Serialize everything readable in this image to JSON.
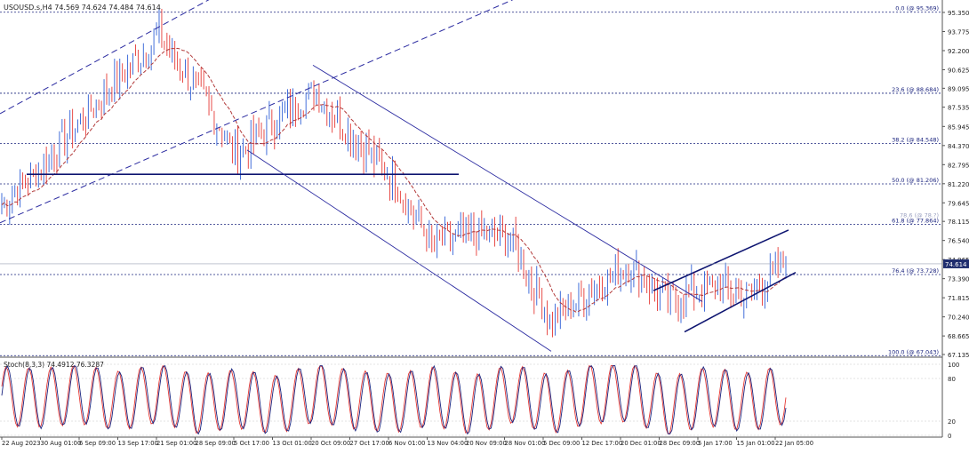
{
  "header": {
    "symbol_ohlc": "USOUSD.s,H4  74.569 74.624 74.484 74.614"
  },
  "price_axis": {
    "ticks": [
      "95.350",
      "93.775",
      "92.200",
      "90.625",
      "89.095",
      "87.535",
      "85.945",
      "84.370",
      "82.795",
      "81.220",
      "79.645",
      "78.115",
      "76.540",
      "74.965",
      "73.390",
      "71.815",
      "70.240",
      "68.665",
      "67.135"
    ],
    "current_price": "74.614",
    "current_color": "#1f2d6e"
  },
  "fibonacci": {
    "color": "#1a237e",
    "levels": [
      {
        "label": "0.0 (@ 95.369)",
        "price": 95.369
      },
      {
        "label": "23.6 (@ 88.684)",
        "price": 88.684
      },
      {
        "label": "38.2 (@ 84.548)",
        "price": 84.548
      },
      {
        "label": "50.0 (@ 81.206)",
        "price": 81.206
      },
      {
        "label": "61.8 (@ 77.864)",
        "price": 77.864
      },
      {
        "label": "76.4 (@ 73.728)",
        "price": 73.728
      },
      {
        "label": "100.0 (@ 67.043)",
        "price": 67.043
      }
    ],
    "extra_label": "78.6 (@ 78.?)"
  },
  "time_axis": {
    "labels": [
      "22 Aug 2023",
      "30 Aug 01:00",
      "6 Sep 09:00",
      "13 Sep 17:00",
      "21 Sep 01:00",
      "28 Sep 09:00",
      "5 Oct 17:00",
      "13 Oct 01:00",
      "20 Oct 09:00",
      "27 Oct 17:00",
      "6 Nov 01:00",
      "13 Nov 04:00",
      "20 Nov 09:00",
      "28 Nov 01:00",
      "5 Dec 09:00",
      "12 Dec 17:00",
      "20 Dec 01:00",
      "28 Dec 09:00",
      "5 Jan 17:00",
      "15 Jan 01:00",
      "22 Jan 05:00"
    ]
  },
  "stochastic": {
    "label": "Stoch(8,3,3) 74.4912 76.3287",
    "ticks": [
      "100",
      "80",
      "20",
      "0"
    ],
    "main_color": "#1a237e",
    "signal_color": "#e53935"
  },
  "colors": {
    "bull": "#2e5fd6",
    "bear": "#e53935",
    "ma": "#b23a3a",
    "channel": "#2a2aa0",
    "support": "#0d1470"
  },
  "chart_data": {
    "type": "candlestick",
    "symbol": "USOUSD.s",
    "timeframe": "H4",
    "ylim": [
      67.135,
      95.35
    ],
    "x": [
      "22 Aug 2023",
      "30 Aug 01:00",
      "6 Sep 09:00",
      "13 Sep 17:00",
      "21 Sep 01:00",
      "28 Sep 09:00",
      "5 Oct 17:00",
      "13 Oct 01:00",
      "20 Oct 09:00",
      "27 Oct 17:00",
      "6 Nov 01:00",
      "13 Nov 04:00",
      "20 Nov 09:00",
      "28 Nov 01:00",
      "5 Dec 09:00",
      "12 Dec 17:00",
      "20 Dec 01:00",
      "28 Dec 09:00",
      "5 Jan 17:00",
      "15 Jan 01:00",
      "22 Jan 05:00"
    ],
    "close_approx": [
      79.5,
      82.5,
      86.5,
      90.0,
      93.5,
      89.0,
      83.5,
      86.5,
      88.8,
      85.0,
      81.5,
      76.0,
      77.3,
      76.5,
      69.8,
      72.5,
      74.5,
      71.5,
      72.8,
      72.0,
      74.614
    ],
    "last": {
      "open": 74.569,
      "high": 74.624,
      "low": 74.484,
      "close": 74.614
    },
    "stochastic_main": [
      70,
      55,
      82,
      40,
      85,
      25,
      60,
      20,
      88,
      45,
      30,
      70,
      20,
      85,
      25,
      80,
      90,
      15,
      70,
      35,
      74.49
    ],
    "stochastic_signal": [
      65,
      60,
      75,
      45,
      80,
      30,
      55,
      25,
      85,
      50,
      35,
      65,
      25,
      80,
      30,
      75,
      85,
      20,
      65,
      40,
      76.33
    ]
  }
}
